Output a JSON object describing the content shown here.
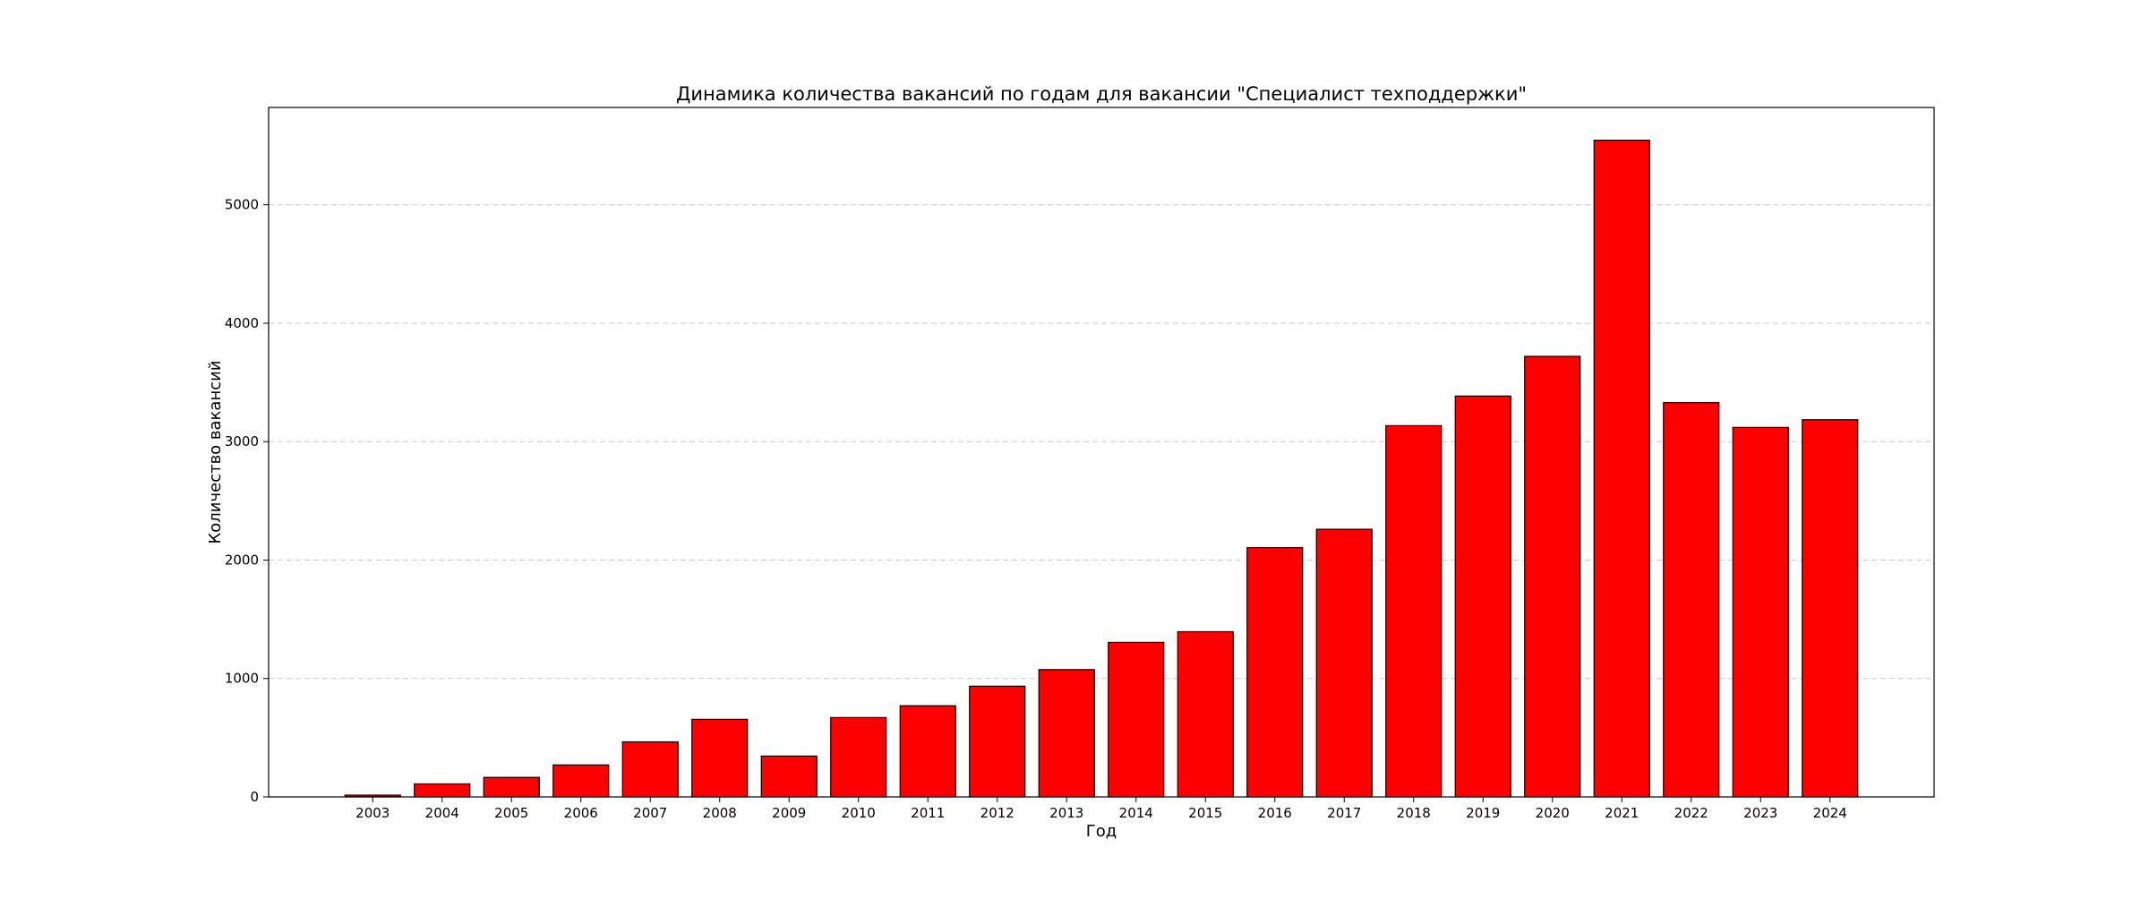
{
  "chart_data": {
    "type": "bar",
    "title": "Динамика количества вакансий по годам для вакансии \"Специалист техподдержки\"",
    "xlabel": "Год",
    "ylabel": "Количество вакансий",
    "categories": [
      "2003",
      "2004",
      "2005",
      "2006",
      "2007",
      "2008",
      "2009",
      "2010",
      "2011",
      "2012",
      "2013",
      "2014",
      "2015",
      "2016",
      "2017",
      "2018",
      "2019",
      "2020",
      "2021",
      "2022",
      "2023",
      "2024"
    ],
    "values": [
      15,
      110,
      165,
      270,
      465,
      655,
      345,
      670,
      770,
      935,
      1075,
      1305,
      1395,
      2105,
      2260,
      3135,
      3385,
      3720,
      5545,
      3330,
      3120,
      3185
    ],
    "yticks": [
      0,
      1000,
      2000,
      3000,
      4000,
      5000
    ],
    "ylim": [
      0,
      5822
    ],
    "grid": "y-dashed",
    "colors": {
      "bar_fill": "#ff0000",
      "bar_edge": "#000000",
      "grid": "#c8c8c8"
    }
  }
}
